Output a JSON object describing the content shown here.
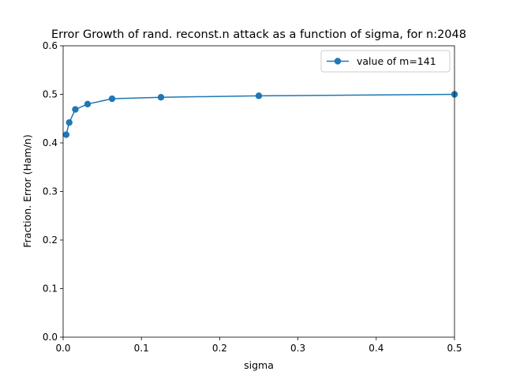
{
  "chart_data": {
    "type": "line",
    "title": "Error Growth of rand. reconst.n attack as a function of sigma, for n:2048",
    "xlabel": "sigma",
    "ylabel": "Fraction. Error (Ham/n)",
    "xlim": [
      0,
      0.5
    ],
    "ylim": [
      0,
      0.6
    ],
    "xticks": [
      0.0,
      0.1,
      0.2,
      0.3,
      0.4,
      0.5
    ],
    "xtick_labels": [
      "0.0",
      "0.1",
      "0.2",
      "0.3",
      "0.4",
      "0.5"
    ],
    "yticks": [
      0.0,
      0.1,
      0.2,
      0.3,
      0.4,
      0.5,
      0.6
    ],
    "ytick_labels": [
      "0.0",
      "0.1",
      "0.2",
      "0.3",
      "0.4",
      "0.5",
      "0.6"
    ],
    "grid": false,
    "legend_position": "top-right",
    "series": [
      {
        "name": "value of m=141",
        "color": "#1f77b4",
        "marker": "circle",
        "x": [
          0.0039,
          0.0078,
          0.0156,
          0.03125,
          0.0625,
          0.125,
          0.25,
          0.5
        ],
        "y": [
          0.417,
          0.442,
          0.469,
          0.48,
          0.491,
          0.494,
          0.497,
          0.5
        ]
      }
    ]
  }
}
